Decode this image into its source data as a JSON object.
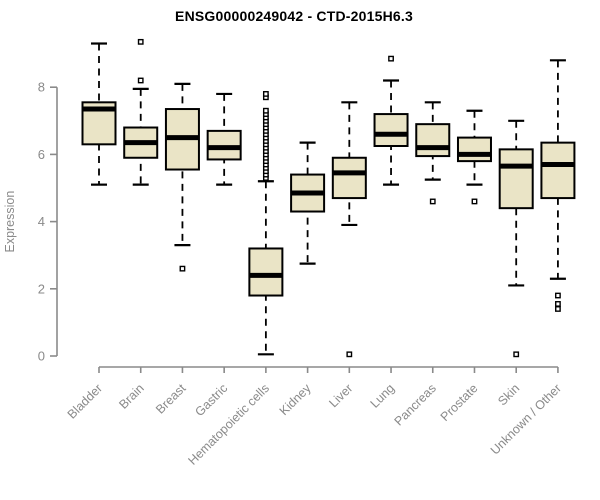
{
  "chart_data": {
    "type": "boxplot",
    "title": "ENSG00000249042 - CTD-2015H6.3",
    "ylabel": "Expression",
    "xlabel": "",
    "yticks": [
      0,
      2,
      4,
      6,
      8
    ],
    "ylim": [
      0,
      9.6
    ],
    "grid": false,
    "legend": "none",
    "categories": [
      "Bladder",
      "Brain",
      "Breast",
      "Gastric",
      "Hematopoietic cells",
      "Kidney",
      "Liver",
      "Lung",
      "Pancreas",
      "Prostate",
      "Skin",
      "Unknown / Other"
    ],
    "series": [
      {
        "name": "Bladder",
        "low": 5.1,
        "q1": 6.3,
        "median": 7.35,
        "q3": 7.55,
        "high": 9.3,
        "outliers": []
      },
      {
        "name": "Brain",
        "low": 5.1,
        "q1": 5.9,
        "median": 6.35,
        "q3": 6.8,
        "high": 7.95,
        "outliers": [
          8.2,
          9.35
        ]
      },
      {
        "name": "Breast",
        "low": 3.3,
        "q1": 5.55,
        "median": 6.5,
        "q3": 7.35,
        "high": 8.1,
        "outliers": [
          2.6
        ]
      },
      {
        "name": "Gastric",
        "low": 5.1,
        "q1": 5.85,
        "median": 6.2,
        "q3": 6.7,
        "high": 7.8,
        "outliers": []
      },
      {
        "name": "Hematopoietic cells",
        "low": 0.05,
        "q1": 1.8,
        "median": 2.4,
        "q3": 3.2,
        "high": 5.2,
        "outliers": [
          5.3,
          5.4,
          5.5,
          5.6,
          5.7,
          5.8,
          5.9,
          6.0,
          6.1,
          6.2,
          6.3,
          6.4,
          6.5,
          6.6,
          6.7,
          6.8,
          6.9,
          7.0,
          7.1,
          7.2,
          7.3,
          7.7,
          7.8
        ]
      },
      {
        "name": "Kidney",
        "low": 2.75,
        "q1": 4.3,
        "median": 4.85,
        "q3": 5.4,
        "high": 6.35,
        "outliers": []
      },
      {
        "name": "Liver",
        "low": 3.9,
        "q1": 4.7,
        "median": 5.45,
        "q3": 5.9,
        "high": 7.55,
        "outliers": [
          0.05
        ]
      },
      {
        "name": "Lung",
        "low": 5.1,
        "q1": 6.25,
        "median": 6.6,
        "q3": 7.2,
        "high": 8.2,
        "outliers": [
          8.85
        ]
      },
      {
        "name": "Pancreas",
        "low": 5.25,
        "q1": 5.95,
        "median": 6.2,
        "q3": 6.9,
        "high": 7.55,
        "outliers": [
          4.6
        ]
      },
      {
        "name": "Prostate",
        "low": 5.1,
        "q1": 5.8,
        "median": 6.0,
        "q3": 6.5,
        "high": 7.3,
        "outliers": [
          4.6
        ]
      },
      {
        "name": "Skin",
        "low": 2.1,
        "q1": 4.4,
        "median": 5.65,
        "q3": 6.15,
        "high": 7.0,
        "outliers": [
          0.05
        ]
      },
      {
        "name": "Unknown / Other",
        "low": 2.3,
        "q1": 4.7,
        "median": 5.7,
        "q3": 6.35,
        "high": 8.8,
        "outliers": [
          1.4,
          1.55,
          1.8
        ]
      }
    ],
    "colors": {
      "box_fill": "#EAE4C6",
      "box_border": "#000000",
      "median": "#000000",
      "whisker": "#000000",
      "axis": "#8a8a8a",
      "title": "#000000",
      "background": "#ffffff"
    }
  }
}
